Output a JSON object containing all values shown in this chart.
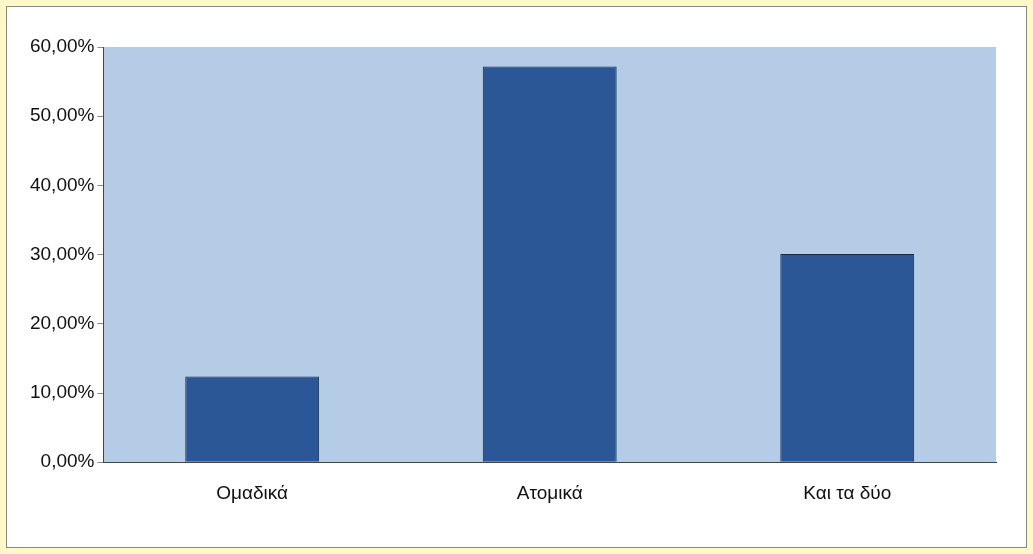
{
  "chart_data": {
    "type": "bar",
    "categories": [
      "Ομαδικά",
      "Ατομικά",
      "Και τα δύο"
    ],
    "values": [
      12.4,
      57.2,
      30.1
    ],
    "color": "#2b5797",
    "ylim": [
      0,
      60
    ],
    "yticks": [
      {
        "value": 0,
        "label": "0,00%"
      },
      {
        "value": 10,
        "label": "10,00%"
      },
      {
        "value": 20,
        "label": "20,00%"
      },
      {
        "value": 30,
        "label": "30,00%"
      },
      {
        "value": 40,
        "label": "40,00%"
      },
      {
        "value": 50,
        "label": "50,00%"
      },
      {
        "value": 60,
        "label": "60,00%"
      }
    ],
    "grid": false,
    "legend": false
  }
}
